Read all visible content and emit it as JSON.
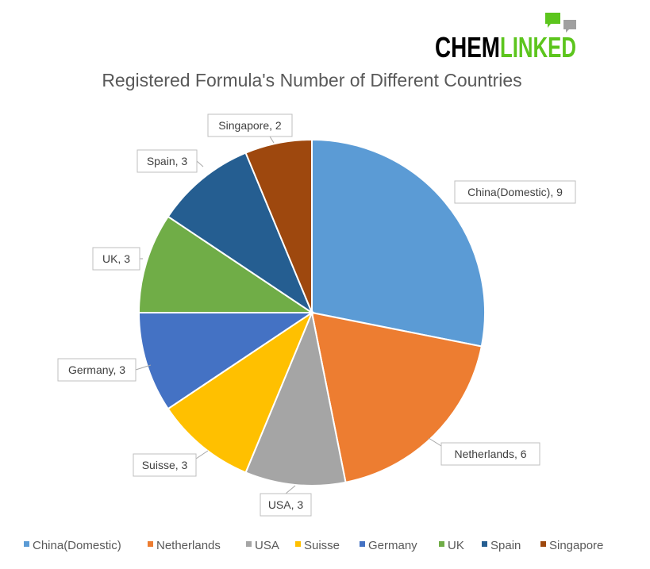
{
  "logo": {
    "text_left": "CHEM",
    "text_right": "LINKED"
  },
  "chart_data": {
    "type": "pie",
    "title": "Registered Formula's Number of Different Countries",
    "categories": [
      "China(Domestic)",
      "Netherlands",
      "USA",
      "Suisse",
      "Germany",
      "UK",
      "Spain",
      "Singapore"
    ],
    "values": [
      9,
      6,
      3,
      3,
      3,
      3,
      3,
      2
    ],
    "data_labels": [
      "China(Domestic), 9",
      "Netherlands, 6",
      "USA, 3",
      "Suisse, 3",
      "Germany, 3",
      "UK, 3",
      "Spain, 3",
      "Singapore, 2"
    ],
    "colors": [
      "#5B9BD5",
      "#ED7D31",
      "#A5A5A5",
      "#FFC000",
      "#4472C4",
      "#70AD47",
      "#255E91",
      "#9E480E"
    ],
    "start_angle": "top, clockwise",
    "legend": "bottom"
  }
}
